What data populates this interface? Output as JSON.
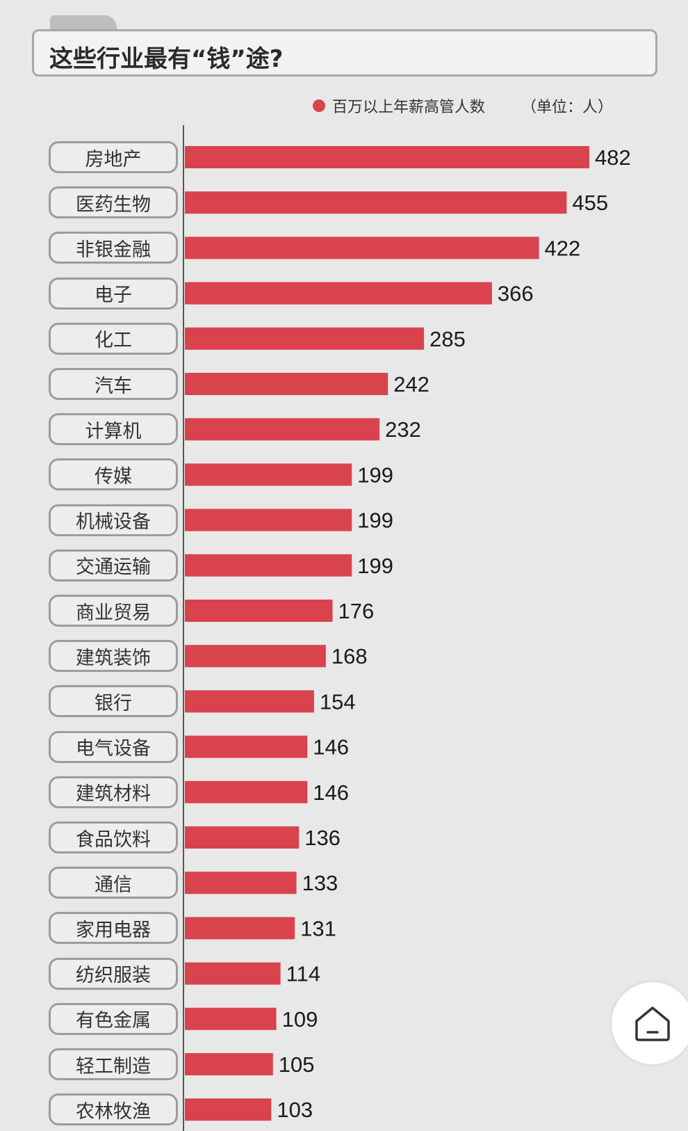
{
  "header": {
    "title": "这些行业最有“钱”途?"
  },
  "legend": {
    "label": "百万以上年薪高管人数",
    "unit": "（单位：人）"
  },
  "colors": {
    "bar": "#d9434d",
    "background": "#e8e8e8"
  },
  "chart_data": {
    "type": "bar",
    "orientation": "horizontal",
    "categories": [
      "房地产",
      "医药生物",
      "非银金融",
      "电子",
      "化工",
      "汽车",
      "计算机",
      "传媒",
      "机械设备",
      "交通运输",
      "商业贸易",
      "建筑装饰",
      "银行",
      "电气设备",
      "建筑材料",
      "食品饮料",
      "通信",
      "家用电器",
      "纺织服装",
      "有色金属",
      "轻工制造",
      "农林牧渔"
    ],
    "series": [
      {
        "name": "百万以上年薪高管人数",
        "values": [
          482,
          455,
          422,
          366,
          285,
          242,
          232,
          199,
          199,
          199,
          176,
          168,
          154,
          146,
          146,
          136,
          133,
          131,
          114,
          109,
          105,
          103
        ]
      }
    ],
    "title": "这些行业最有“钱”途?",
    "unit": "（单位：人）",
    "legend_position": "top-right",
    "grid": false
  },
  "home_button": {
    "icon": "home-icon"
  }
}
